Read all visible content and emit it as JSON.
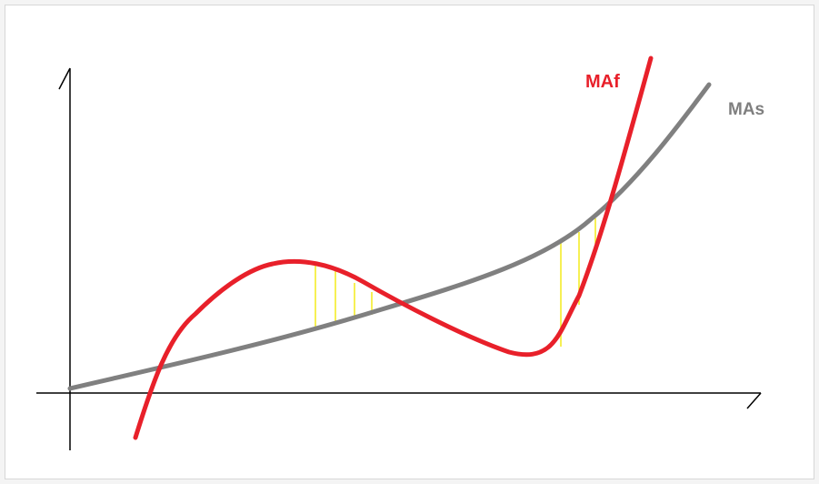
{
  "diagram": {
    "labels": {
      "fast": "MAf",
      "slow": "MAs"
    },
    "colors": {
      "fast_line": "#e8202a",
      "slow_line": "#808080",
      "hatch": "#f2ea1a",
      "axes": "#000000"
    }
  }
}
